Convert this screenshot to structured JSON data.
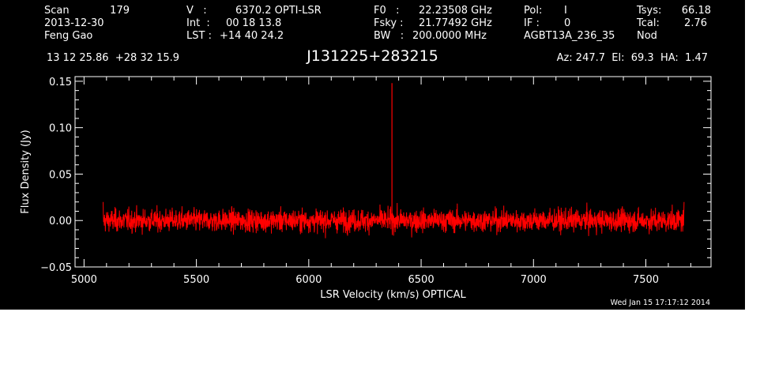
{
  "header": {
    "scan_label": "Scan",
    "scan_value": "179",
    "date": "2013-12-30",
    "observer": "Feng Gao",
    "v_label": "V   :",
    "v_value": "6370.2 OPTI-LSR",
    "int_label": "Int  :",
    "int_value": "00 18 13.8",
    "lst_label": "LST :",
    "lst_value": "+14 40 24.2",
    "f0_label": "F0   :",
    "f0_value": "22.23508 GHz",
    "fsky_label": "Fsky :",
    "fsky_value": "21.77492 GHz",
    "bw_label": "BW   :",
    "bw_value": "200.0000 MHz",
    "pol_label": "Pol:",
    "pol_value": "I",
    "if_label": "IF :",
    "if_value": "0",
    "project": "AGBT13A_236_35",
    "tsys_label": "Tsys:",
    "tsys_value": "66.18",
    "tcal_label": "Tcal:",
    "tcal_value": "2.76",
    "mode": "Nod",
    "ra_dec": "13 12 25.86  +28 32 15.9",
    "source": "J131225+283215",
    "az_el_ha": "Az: 247.7  El:  69.3  HA:  1.47"
  },
  "footer": {
    "timestamp": "Wed Jan 15 17:17:12 2014"
  },
  "colors": {
    "background": "#000000",
    "axes": "#ffffff",
    "trace": "#ff0000"
  },
  "chart_data": {
    "type": "line",
    "xlabel": "LSR Velocity (km/s) OPTICAL",
    "ylabel": "Flux Density (Jy)",
    "xlim": [
      4960,
      7790
    ],
    "ylim": [
      -0.05,
      0.155
    ],
    "xticks": [
      5000,
      5500,
      6000,
      6500,
      7000,
      7500
    ],
    "yticks": [
      -0.05,
      0.0,
      0.05,
      0.1,
      0.15
    ],
    "ytick_labels": [
      "−0.05",
      "0.00",
      "0.05",
      "0.10",
      "0.15"
    ],
    "grid": false,
    "series": [
      {
        "velocity_range": [
          5085,
          7670
        ],
        "noise_rms_jy": 0.006,
        "baseline_jy": 0.0,
        "peak": {
          "velocity": 6370.2,
          "flux_jy": 0.148
        }
      }
    ]
  }
}
